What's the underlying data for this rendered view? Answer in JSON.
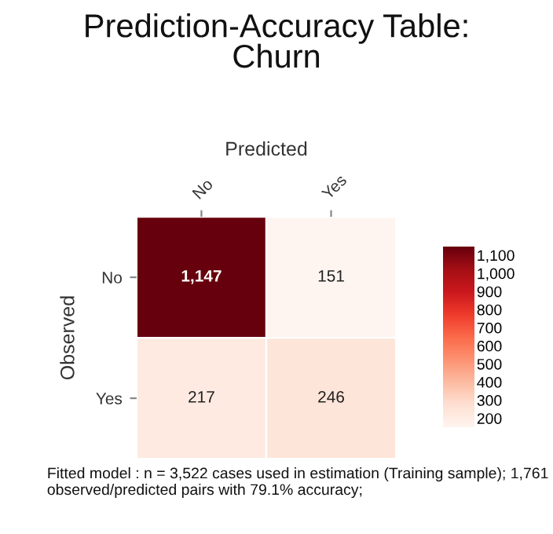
{
  "chart_data": {
    "type": "heatmap",
    "title": "Prediction-Accuracy Table:\nChurn",
    "xlabel": "Predicted",
    "ylabel": "Observed",
    "categories": [
      "No",
      "Yes"
    ],
    "y_categories": [
      "No",
      "Yes"
    ],
    "cells": [
      [
        1147,
        151
      ],
      [
        217,
        246
      ]
    ],
    "cell_labels": [
      [
        "1,147",
        "151"
      ],
      [
        "217",
        "246"
      ]
    ],
    "clim": [
      151,
      1147
    ],
    "cticks": [
      {
        "value": 200,
        "label": "200"
      },
      {
        "value": 300,
        "label": "300"
      },
      {
        "value": 400,
        "label": "400"
      },
      {
        "value": 500,
        "label": "500"
      },
      {
        "value": 600,
        "label": "600"
      },
      {
        "value": 700,
        "label": "700"
      },
      {
        "value": 800,
        "label": "800"
      },
      {
        "value": 900,
        "label": "900"
      },
      {
        "value": 1000,
        "label": "1,000"
      },
      {
        "value": 1100,
        "label": "1,100"
      }
    ],
    "annotations": [
      "Fitted model : n = 3,522 cases used in estimation (Training sample); 1,761 observed/predicted pairs with 79.1% accuracy;"
    ]
  }
}
